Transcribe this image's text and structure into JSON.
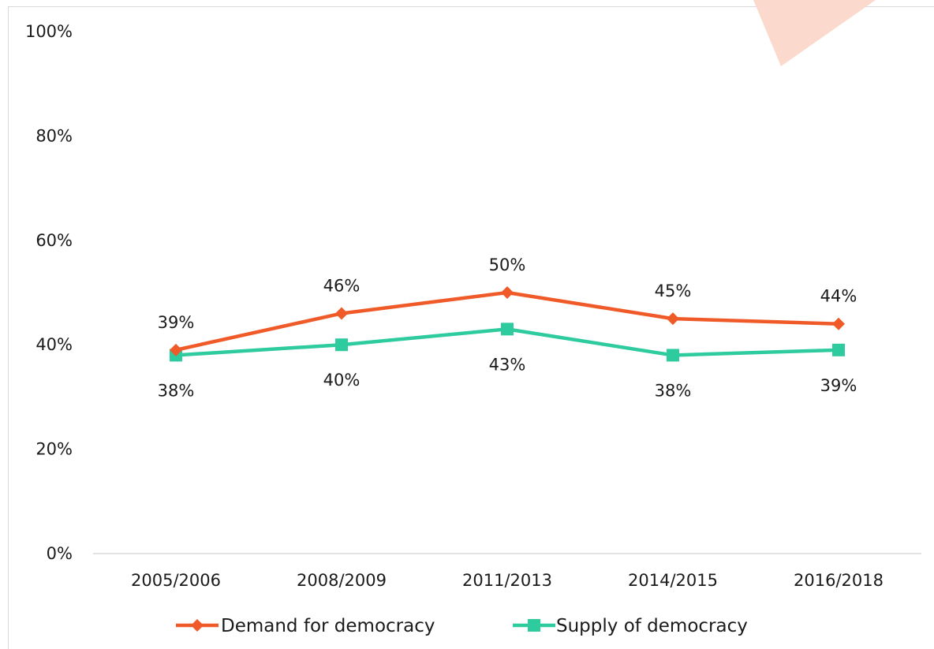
{
  "chart_data": {
    "type": "line",
    "categories": [
      "2005/2006",
      "2008/2009",
      "2011/2013",
      "2014/2015",
      "2016/2018"
    ],
    "series": [
      {
        "name": "Demand for democracy",
        "values": [
          39,
          46,
          50,
          45,
          44
        ],
        "labels": [
          "39%",
          "46%",
          "50%",
          "45%",
          "44%"
        ],
        "color": "#f05a28",
        "marker": "diamond"
      },
      {
        "name": "Supply of democracy",
        "values": [
          38,
          40,
          43,
          38,
          39
        ],
        "labels": [
          "38%",
          "40%",
          "43%",
          "38%",
          "39%"
        ],
        "color": "#2dcb9e",
        "marker": "square"
      }
    ],
    "ylim": [
      0,
      100
    ],
    "yticks": [
      "0%",
      "20%",
      "40%",
      "60%",
      "80%",
      "100%"
    ],
    "ytick_values": [
      0,
      20,
      40,
      60,
      80,
      100
    ],
    "grid": false,
    "legend_position": "bottom",
    "title": "",
    "xlabel": "",
    "ylabel": ""
  },
  "colors": {
    "axis": "#d9d9d9",
    "decor_triangle": "#fbd9cc"
  }
}
